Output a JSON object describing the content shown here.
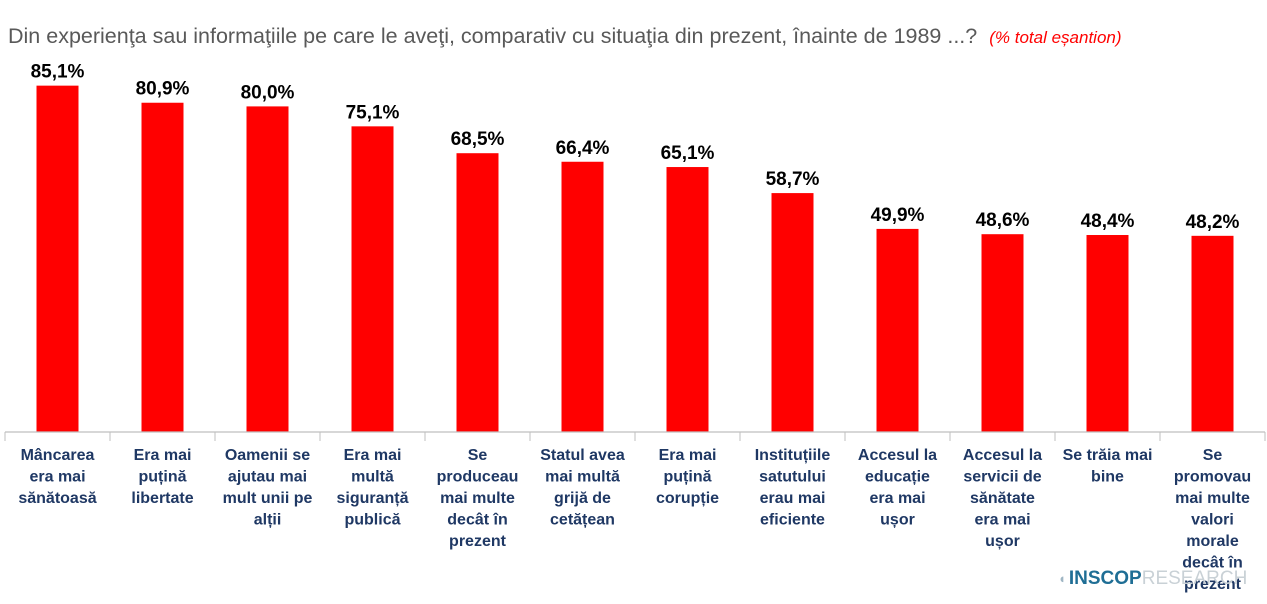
{
  "title": "Din experienţa sau informaţiile pe care le aveţi, comparativ cu situaţia din prezent, înainte de 1989 ...?",
  "subtitle": "(% total eșantion)",
  "logo": {
    "strong": "INSCOP",
    "light": "RESEARCH"
  },
  "colors": {
    "bar": "#ff0000",
    "axis": "#bfbfbf",
    "label": "#1f3864",
    "value": "#000000"
  },
  "chart_data": {
    "type": "bar",
    "categories": [
      "Mâncarea era mai sănătoasă",
      "Era mai puțină libertate",
      "Oamenii se ajutau mai mult unii pe alții",
      "Era mai multă siguranță publică",
      "Se produceau mai multe decât în prezent",
      "Statul avea mai multă grijă de cetățean",
      "Era mai puțină corupție",
      "Instituțiile satutului erau mai eficiente",
      "Accesul la educație era mai ușor",
      "Accesul la servicii de sănătate era mai ușor",
      "Se trăia mai bine",
      "Se promovau mai multe valori morale decât în prezent"
    ],
    "category_lines": [
      [
        "Mâncarea",
        "era mai",
        "sănătoasă"
      ],
      [
        "Era mai",
        "puțină",
        "libertate"
      ],
      [
        "Oamenii se",
        "ajutau mai",
        "mult unii pe",
        "alții"
      ],
      [
        "Era mai",
        "multă",
        "siguranță",
        "publică"
      ],
      [
        "Se",
        "produceau",
        "mai multe",
        "decât în",
        "prezent"
      ],
      [
        "Statul avea",
        "mai multă",
        "grijă de",
        "cetățean"
      ],
      [
        "Era mai",
        "puțină",
        "corupție"
      ],
      [
        "Instituțiile",
        "satutului",
        "erau mai",
        "eficiente"
      ],
      [
        "Accesul la",
        "educație",
        "era mai",
        "ușor"
      ],
      [
        "Accesul la",
        "servicii de",
        "sănătate",
        "era mai",
        "ușor"
      ],
      [
        "Se trăia mai",
        "bine"
      ],
      [
        "Se",
        "promovau",
        "mai multe",
        "valori",
        "morale",
        "decât în",
        "prezent"
      ]
    ],
    "values": [
      85.1,
      80.9,
      80.0,
      75.1,
      68.5,
      66.4,
      65.1,
      58.7,
      49.9,
      48.6,
      48.4,
      48.2
    ],
    "value_labels": [
      "85,1%",
      "80,9%",
      "80,0%",
      "75,1%",
      "68,5%",
      "66,4%",
      "65,1%",
      "58,7%",
      "49,9%",
      "48,6%",
      "48,4%",
      "48,2%"
    ],
    "ylim": [
      0,
      100
    ],
    "grid": false,
    "legend": "none"
  }
}
